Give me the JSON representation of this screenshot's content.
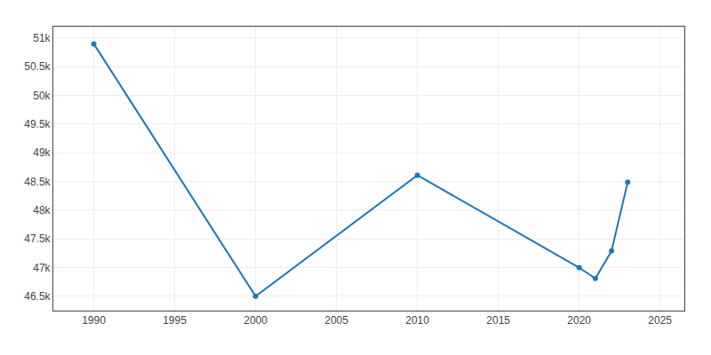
{
  "chart_data": {
    "type": "line",
    "x": [
      1990,
      2000,
      2010,
      2020,
      2021,
      2022,
      2023
    ],
    "values": [
      50900,
      46500,
      48610,
      47000,
      46810,
      47290,
      48490
    ],
    "marker": "circle",
    "xlim": [
      1987.5,
      2026.5
    ],
    "xticks": [
      1990,
      1995,
      2000,
      2005,
      2010,
      2015,
      2020,
      2025
    ],
    "ylim": [
      46250,
      51200
    ],
    "yticks": [
      {
        "value": 46500,
        "label": "46.5k"
      },
      {
        "value": 47000,
        "label": "47k"
      },
      {
        "value": 47500,
        "label": "47.5k"
      },
      {
        "value": 48000,
        "label": "48k"
      },
      {
        "value": 48500,
        "label": "48.5k"
      },
      {
        "value": 49000,
        "label": "49k"
      },
      {
        "value": 49500,
        "label": "49.5k"
      },
      {
        "value": 50000,
        "label": "50k"
      },
      {
        "value": 50500,
        "label": "50.5k"
      },
      {
        "value": 51000,
        "label": "51k"
      }
    ],
    "grid": true
  }
}
